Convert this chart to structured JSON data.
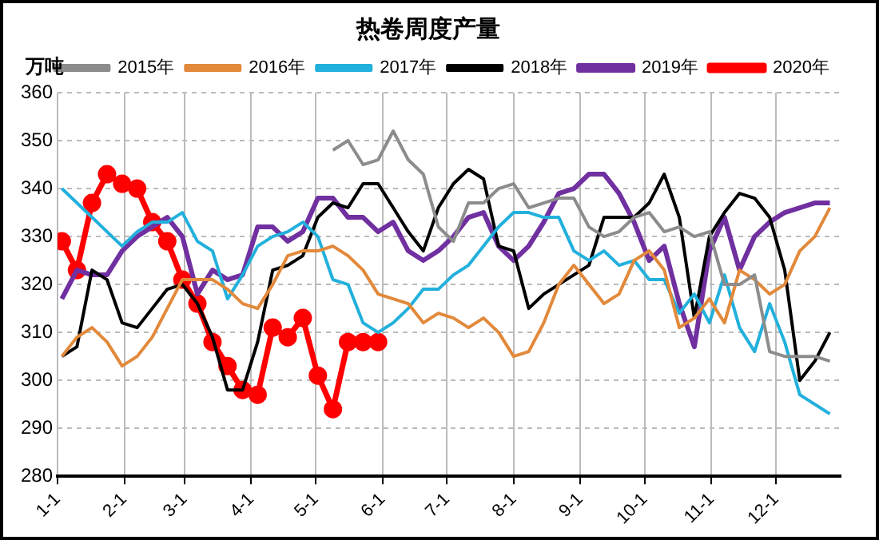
{
  "chart_data": {
    "type": "line",
    "title": "热卷周度产量",
    "ylabel": "万吨",
    "x": [
      "--01-03",
      "--01-10",
      "--01-17",
      "--01-24",
      "--01-31",
      "--02-07",
      "--02-14",
      "--02-21",
      "--02-28",
      "--03-07",
      "--03-14",
      "--03-21",
      "--03-28",
      "--04-04",
      "--04-11",
      "--04-18",
      "--04-25",
      "--05-02",
      "--05-09",
      "--05-16",
      "--05-23",
      "--05-30",
      "--06-06",
      "--06-13",
      "--06-20",
      "--06-27",
      "--07-04",
      "--07-11",
      "--07-18",
      "--07-25",
      "--08-01",
      "--08-08",
      "--08-15",
      "--08-22",
      "--08-29",
      "--09-05",
      "--09-12",
      "--09-19",
      "--09-26",
      "--10-03",
      "--10-10",
      "--10-17",
      "--10-24",
      "--10-31",
      "--11-07",
      "--11-14",
      "--11-21",
      "--11-28",
      "--12-05",
      "--12-12",
      "--12-19",
      "--12-26"
    ],
    "series": [
      {
        "name": "2015年",
        "color": "#8c8c8c",
        "values": [
          null,
          null,
          null,
          null,
          null,
          null,
          null,
          null,
          null,
          null,
          null,
          null,
          null,
          null,
          null,
          null,
          null,
          null,
          348,
          350,
          345,
          346,
          352,
          346,
          343,
          332,
          329,
          337,
          337,
          340,
          341,
          336,
          337,
          338,
          338,
          332,
          330,
          331,
          334,
          335,
          331,
          332,
          330,
          331,
          320,
          320,
          322,
          306,
          305,
          305,
          305,
          304
        ]
      },
      {
        "name": "2016年",
        "color": "#e2893b",
        "values": [
          305,
          309,
          311,
          308,
          303,
          305,
          309,
          315,
          321,
          321,
          321,
          319,
          316,
          315,
          320,
          326,
          327,
          327,
          328,
          326,
          323,
          318,
          317,
          316,
          312,
          314,
          313,
          311,
          313,
          310,
          305,
          306,
          312,
          320,
          324,
          320,
          316,
          318,
          325,
          327,
          323,
          311,
          313,
          317,
          312,
          323,
          321,
          318,
          320,
          327,
          330,
          336
        ]
      },
      {
        "name": "2017年",
        "color": "#22b0dc",
        "values": [
          340,
          337,
          334,
          331,
          328,
          331,
          333,
          333,
          335,
          329,
          327,
          317,
          322,
          328,
          330,
          331,
          333,
          330,
          321,
          320,
          312,
          310,
          312,
          315,
          319,
          319,
          322,
          324,
          328,
          332,
          335,
          335,
          334,
          334,
          327,
          325,
          327,
          324,
          325,
          321,
          321,
          314,
          318,
          312,
          322,
          311,
          306,
          316,
          308,
          297,
          295,
          293
        ]
      },
      {
        "name": "2018年",
        "color": "#000000",
        "values": [
          305,
          307,
          323,
          321,
          312,
          311,
          315,
          319,
          320,
          316,
          309,
          298,
          298,
          308,
          323,
          324,
          326,
          334,
          337,
          336,
          341,
          341,
          336,
          331,
          327,
          336,
          341,
          344,
          342,
          328,
          327,
          315,
          318,
          320,
          322,
          324,
          334,
          334,
          334,
          337,
          343,
          334,
          313,
          330,
          335,
          339,
          338,
          334,
          323,
          300,
          304,
          310
        ]
      },
      {
        "name": "2019年",
        "color": "#7030a0",
        "values": [
          317,
          323,
          322,
          322,
          327,
          330,
          332,
          334,
          330,
          318,
          323,
          321,
          322,
          332,
          332,
          329,
          331,
          338,
          338,
          334,
          334,
          331,
          333,
          327,
          325,
          327,
          330,
          334,
          335,
          328,
          325,
          328,
          333,
          339,
          340,
          343,
          343,
          339,
          333,
          325,
          328,
          316,
          307,
          327,
          334,
          323,
          330,
          333,
          335,
          336,
          337,
          337
        ]
      },
      {
        "name": "2020年",
        "color": "#ff0000",
        "marker": "circle",
        "values": [
          329,
          323,
          337,
          343,
          341,
          340,
          333,
          329,
          321,
          316,
          308,
          303,
          298,
          297,
          311,
          309,
          313,
          301,
          294,
          308,
          308,
          308,
          null,
          null,
          null,
          null,
          null,
          null,
          null,
          null,
          null,
          null,
          null,
          null,
          null,
          null,
          null,
          null,
          null,
          null,
          null,
          null,
          null,
          null,
          null,
          null,
          null,
          null,
          null,
          null,
          null,
          null
        ]
      }
    ],
    "xlim": [
      "--01-01",
      "--12-31"
    ],
    "xticks": [
      {
        "value": "--01-01",
        "label": "1-1"
      },
      {
        "value": "--02-01",
        "label": "2-1"
      },
      {
        "value": "--03-01",
        "label": "3-1"
      },
      {
        "value": "--04-01",
        "label": "4-1"
      },
      {
        "value": "--05-01",
        "label": "5-1"
      },
      {
        "value": "--06-01",
        "label": "6-1"
      },
      {
        "value": "--07-01",
        "label": "7-1"
      },
      {
        "value": "--08-01",
        "label": "8-1"
      },
      {
        "value": "--09-01",
        "label": "9-1"
      },
      {
        "value": "--10-01",
        "label": "10-1"
      },
      {
        "value": "--11-01",
        "label": "11-1"
      },
      {
        "value": "--12-01",
        "label": "12-1"
      }
    ],
    "ylim": [
      280,
      360
    ],
    "yticks": [
      280,
      290,
      300,
      310,
      320,
      330,
      340,
      350,
      360
    ],
    "grid": true,
    "legend": "top",
    "marker": "none",
    "line_style": "solid"
  }
}
